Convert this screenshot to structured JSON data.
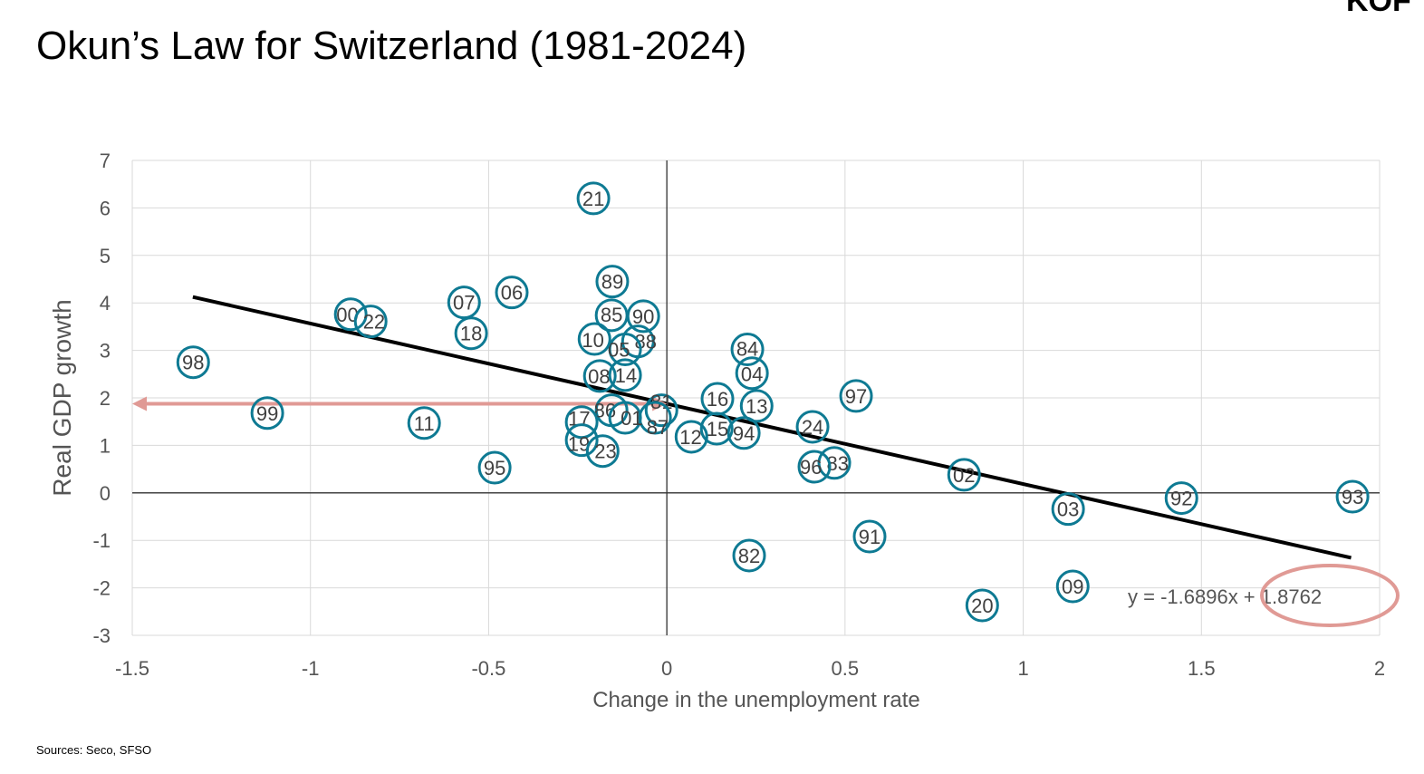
{
  "title": "Okun’s Law for Switzerland (1981-2024)",
  "logo_text": "KOF",
  "source": "Sources: Seco, SFSO",
  "colors": {
    "marker": "#0e7a93",
    "trend": "#000000",
    "highlight": "#e09a95",
    "grid": "#d9d9d9"
  },
  "chart_data": {
    "type": "scatter",
    "title": "Okun’s Law for Switzerland (1981-2024)",
    "xlabel": "Change in the unemployment rate",
    "ylabel": "Real GDP growth",
    "xlim": [
      -1.5,
      2
    ],
    "ylim": [
      -3,
      7
    ],
    "xticks": [
      "-1.5",
      "-1",
      "-0.5",
      "0",
      "0.5",
      "1",
      "1.5",
      "2"
    ],
    "yticks": [
      "-3",
      "-2",
      "-1",
      "0",
      "1",
      "2",
      "3",
      "4",
      "5",
      "6",
      "7"
    ],
    "grid": true,
    "points": [
      {
        "label": "81",
        "x": -0.015,
        "y": 1.74
      },
      {
        "label": "82",
        "x": 0.231,
        "y": -1.32
      },
      {
        "label": "83",
        "x": 0.47,
        "y": 0.63
      },
      {
        "label": "84",
        "x": 0.226,
        "y": 3.02
      },
      {
        "label": "85",
        "x": -0.155,
        "y": 3.74
      },
      {
        "label": "86",
        "x": -0.155,
        "y": 1.74
      },
      {
        "label": "87",
        "x": -0.033,
        "y": 1.58
      },
      {
        "label": "88",
        "x": -0.081,
        "y": 3.19
      },
      {
        "label": "89",
        "x": -0.153,
        "y": 4.45
      },
      {
        "label": "90",
        "x": -0.066,
        "y": 3.72
      },
      {
        "label": "91",
        "x": 0.569,
        "y": -0.92
      },
      {
        "label": "92",
        "x": 1.444,
        "y": -0.11
      },
      {
        "label": "93",
        "x": 1.924,
        "y": -0.08
      },
      {
        "label": "94",
        "x": 0.216,
        "y": 1.26
      },
      {
        "label": "95",
        "x": -0.483,
        "y": 0.53
      },
      {
        "label": "96",
        "x": 0.414,
        "y": 0.55
      },
      {
        "label": "97",
        "x": 0.531,
        "y": 2.04
      },
      {
        "label": "98",
        "x": -1.329,
        "y": 2.75
      },
      {
        "label": "99",
        "x": -1.121,
        "y": 1.68
      },
      {
        "label": "00",
        "x": -0.887,
        "y": 3.76
      },
      {
        "label": "01",
        "x": -0.117,
        "y": 1.58
      },
      {
        "label": "02",
        "x": 0.834,
        "y": 0.38
      },
      {
        "label": "03",
        "x": 1.126,
        "y": -0.34
      },
      {
        "label": "04",
        "x": 0.239,
        "y": 2.52
      },
      {
        "label": "05",
        "x": -0.117,
        "y": 3.02
      },
      {
        "label": "06",
        "x": -0.435,
        "y": 4.22
      },
      {
        "label": "07",
        "x": -0.569,
        "y": 4.01
      },
      {
        "label": "08",
        "x": -0.188,
        "y": 2.46
      },
      {
        "label": "09",
        "x": 1.139,
        "y": -1.97
      },
      {
        "label": "10",
        "x": -0.203,
        "y": 3.24
      },
      {
        "label": "11",
        "x": -0.681,
        "y": 1.47
      },
      {
        "label": "12",
        "x": 0.069,
        "y": 1.18
      },
      {
        "label": "13",
        "x": 0.252,
        "y": 1.83
      },
      {
        "label": "14",
        "x": -0.117,
        "y": 2.48
      },
      {
        "label": "15",
        "x": 0.14,
        "y": 1.35
      },
      {
        "label": "16",
        "x": 0.142,
        "y": 1.98
      },
      {
        "label": "17",
        "x": -0.239,
        "y": 1.49
      },
      {
        "label": "18",
        "x": -0.549,
        "y": 3.36
      },
      {
        "label": "19",
        "x": -0.239,
        "y": 1.11
      },
      {
        "label": "20",
        "x": 0.885,
        "y": -2.37
      },
      {
        "label": "21",
        "x": -0.206,
        "y": 6.2
      },
      {
        "label": "22",
        "x": -0.831,
        "y": 3.61
      },
      {
        "label": "23",
        "x": -0.18,
        "y": 0.88
      },
      {
        "label": "24",
        "x": 0.409,
        "y": 1.39
      }
    ],
    "trendline": {
      "slope": -1.6896,
      "intercept": 1.8762,
      "x_range": [
        -1.33,
        1.92
      ],
      "equation": "y = -1.6896x + 1.8762"
    },
    "annotations": {
      "arrow_from_x": 0,
      "arrow_to_x": -1.5,
      "arrow_y": 1.8762,
      "circled_text": "+ 1.8762"
    }
  }
}
